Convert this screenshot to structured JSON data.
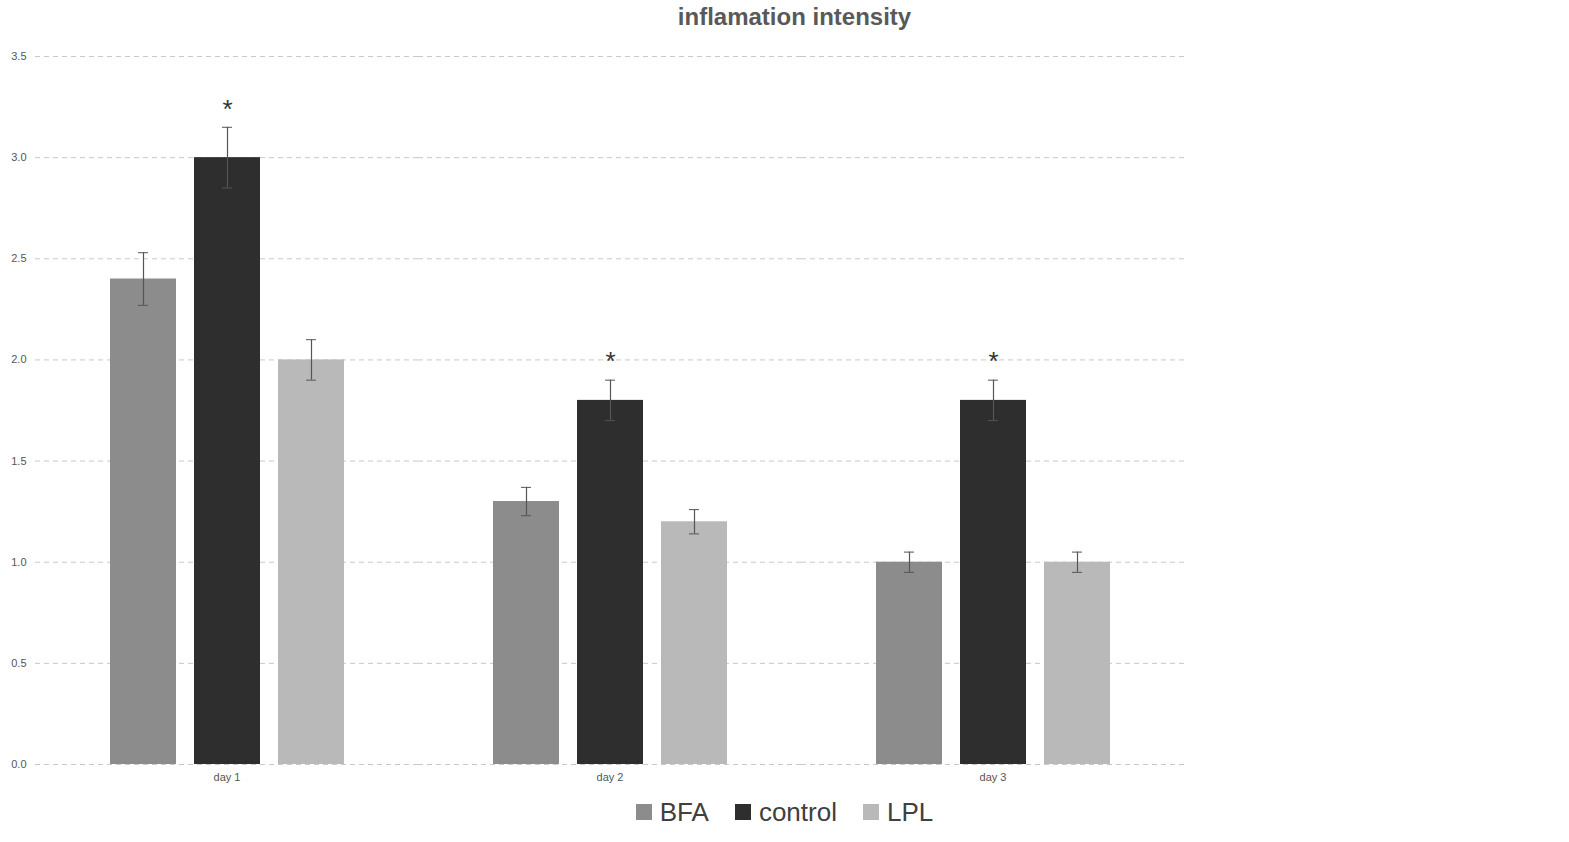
{
  "chart_data": {
    "type": "bar",
    "title": "inflamation intensity",
    "categories": [
      "day 1",
      "day 2",
      "day 3"
    ],
    "series": [
      {
        "name": "BFA",
        "color": "#8c8c8c",
        "values": [
          2.4,
          1.3,
          1.0
        ],
        "errors": [
          0.13,
          0.07,
          0.05
        ]
      },
      {
        "name": "control",
        "color": "#2e2e2e",
        "values": [
          3.0,
          1.8,
          1.8
        ],
        "errors": [
          0.15,
          0.1,
          0.1
        ]
      },
      {
        "name": "LPL",
        "color": "#b9b9b9",
        "values": [
          2.0,
          1.2,
          1.0
        ],
        "errors": [
          0.1,
          0.06,
          0.05
        ]
      }
    ],
    "annotations": [
      {
        "text": "*",
        "category": "day 1",
        "series": "control"
      },
      {
        "text": "*",
        "category": "day 2",
        "series": "control"
      },
      {
        "text": "*",
        "category": "day 3",
        "series": "control"
      }
    ],
    "ylim": [
      0,
      3.5
    ],
    "yticks": [
      0,
      0.5,
      1,
      1.5,
      2,
      2.5,
      3,
      3.5
    ],
    "grid": true,
    "legend": "bottom"
  }
}
